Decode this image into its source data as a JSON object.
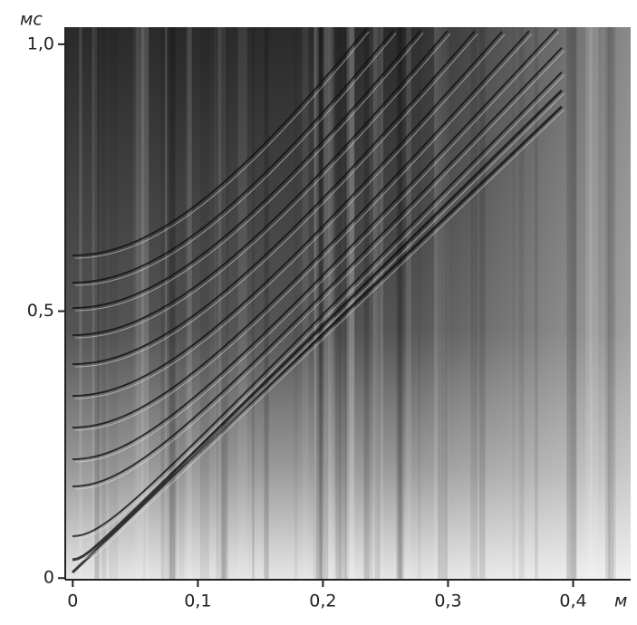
{
  "chart_data": {
    "type": "image",
    "y_label": "мс",
    "x_label": "м",
    "xlim": [
      -0.006,
      0.446
    ],
    "ylim": [
      -0.003,
      1.032
    ],
    "xticks": [
      0,
      {
        "value": 0.1,
        "label": "0,1"
      },
      {
        "value": 0.2,
        "label": "0,2"
      },
      {
        "value": 0.3,
        "label": "0,3"
      },
      {
        "value": 0.4,
        "label": "0,4"
      }
    ],
    "yticks": [
      0,
      {
        "value": 0.5,
        "label": "0,5"
      },
      {
        "value": 1.0,
        "label": "1,0"
      }
    ]
  }
}
